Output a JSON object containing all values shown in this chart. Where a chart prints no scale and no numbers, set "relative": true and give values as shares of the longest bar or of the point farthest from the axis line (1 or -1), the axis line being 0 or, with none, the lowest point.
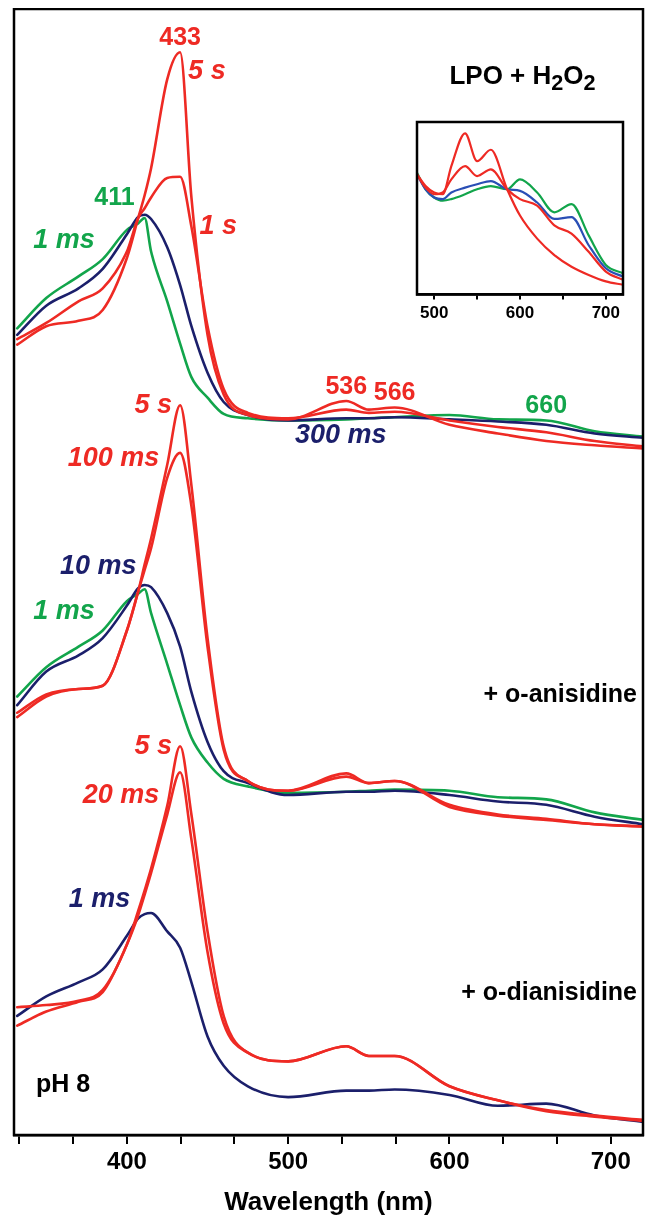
{
  "chart_data": [
    {
      "type": "line",
      "xlabel": "Wavelength (nm)",
      "relative": true,
      "legend": false,
      "grid": false,
      "marker": "none",
      "line_style": "solid",
      "x": [
        332,
        350,
        370,
        385,
        400,
        407,
        411,
        415,
        425,
        433,
        440,
        450,
        460,
        475,
        500,
        536,
        550,
        566,
        600,
        630,
        660,
        690,
        720
      ],
      "xlim": [
        330,
        720
      ],
      "xticks": [
        {
          "value": 333.3,
          "label": null
        },
        {
          "value": 366.7,
          "label": null
        },
        400,
        {
          "value": 433.3,
          "label": null
        },
        {
          "value": 466.7,
          "label": null
        },
        500,
        {
          "value": 533.3,
          "label": null
        },
        {
          "value": 566.7,
          "label": null
        },
        600,
        {
          "value": 633.3,
          "label": null
        },
        {
          "value": 666.7,
          "label": null
        },
        700
      ],
      "series": [
        {
          "name": "5 s",
          "color": "#ee2a24",
          "values": [
            0.73,
            0.747,
            0.752,
            0.762,
            0.81,
            0.847,
            0.868,
            0.893,
            0.975,
            1.0,
            0.866,
            0.739,
            0.684,
            0.665,
            0.661,
            0.678,
            0.67,
            0.672,
            0.656,
            0.648,
            0.641,
            0.637,
            0.634
          ]
        },
        {
          "name": "1 s",
          "color": "#ee2a24",
          "values": [
            0.735,
            0.75,
            0.77,
            0.782,
            0.816,
            0.847,
            0.856,
            0.866,
            0.884,
            0.885,
            0.839,
            0.747,
            0.689,
            0.667,
            0.662,
            0.67,
            0.667,
            0.668,
            0.66,
            0.654,
            0.649,
            0.641,
            0.636
          ]
        },
        {
          "name": "300 ms",
          "color": "#1b1f6b",
          "values": [
            0.739,
            0.766,
            0.782,
            0.8,
            0.832,
            0.848,
            0.85,
            0.846,
            0.82,
            0.785,
            0.747,
            0.704,
            0.677,
            0.665,
            0.66,
            0.662,
            0.662,
            0.663,
            0.661,
            0.659,
            0.656,
            0.648,
            0.644
          ]
        },
        {
          "name": "1 ms",
          "color": "#12a54b",
          "values": [
            0.745,
            0.773,
            0.793,
            0.809,
            0.836,
            0.842,
            0.847,
            0.816,
            0.77,
            0.731,
            0.7,
            0.681,
            0.666,
            0.662,
            0.66,
            0.661,
            0.662,
            0.663,
            0.665,
            0.661,
            0.66,
            0.65,
            0.645
          ]
        },
        {
          "name": "5 s",
          "color": "#ee2a24",
          "values": [
            0.39,
            0.407,
            0.412,
            0.415,
            0.466,
            0.502,
            0.527,
            0.551,
            0.619,
            0.674,
            0.6,
            0.459,
            0.359,
            0.327,
            0.318,
            0.334,
            0.325,
            0.327,
            0.305,
            0.296,
            0.292,
            0.287,
            0.285
          ]
        },
        {
          "name": "100 ms",
          "color": "#ee2a24",
          "values": [
            0.386,
            0.405,
            0.412,
            0.415,
            0.466,
            0.502,
            0.522,
            0.542,
            0.607,
            0.63,
            0.581,
            0.451,
            0.356,
            0.327,
            0.318,
            0.331,
            0.325,
            0.327,
            0.303,
            0.295,
            0.291,
            0.287,
            0.285
          ]
        },
        {
          "name": "10 ms",
          "color": "#1b1f6b",
          "values": [
            0.397,
            0.428,
            0.443,
            0.459,
            0.489,
            0.505,
            0.508,
            0.506,
            0.482,
            0.451,
            0.409,
            0.363,
            0.336,
            0.325,
            0.314,
            0.317,
            0.317,
            0.318,
            0.314,
            0.308,
            0.305,
            0.294,
            0.287
          ]
        },
        {
          "name": "1 ms",
          "color": "#12a54b",
          "values": [
            0.405,
            0.432,
            0.451,
            0.466,
            0.493,
            0.5,
            0.504,
            0.482,
            0.435,
            0.397,
            0.367,
            0.344,
            0.329,
            0.322,
            0.316,
            0.317,
            0.318,
            0.319,
            0.318,
            0.312,
            0.31,
            0.298,
            0.291
          ]
        },
        {
          "name": "5 s",
          "color": "#ee2a24",
          "values": [
            0.118,
            0.12,
            0.124,
            0.134,
            0.176,
            0.207,
            0.226,
            0.246,
            0.304,
            0.359,
            0.296,
            0.188,
            0.11,
            0.076,
            0.068,
            0.082,
            0.073,
            0.073,
            0.045,
            0.032,
            0.023,
            0.018,
            0.014
          ]
        },
        {
          "name": "20 ms",
          "color": "#ee2a24",
          "values": [
            0.101,
            0.114,
            0.123,
            0.132,
            0.176,
            0.203,
            0.222,
            0.242,
            0.296,
            0.335,
            0.273,
            0.169,
            0.103,
            0.076,
            0.068,
            0.082,
            0.073,
            0.073,
            0.045,
            0.032,
            0.022,
            0.017,
            0.013
          ]
        },
        {
          "name": "1 ms",
          "color": "#1b1f6b",
          "values": [
            0.11,
            0.128,
            0.141,
            0.153,
            0.184,
            0.2,
            0.204,
            0.205,
            0.188,
            0.173,
            0.141,
            0.091,
            0.064,
            0.045,
            0.035,
            0.041,
            0.041,
            0.042,
            0.037,
            0.027,
            0.029,
            0.018,
            0.012
          ]
        }
      ],
      "annotations": [
        "+ o-anisidine",
        "+ o-dianisidine",
        "pH 8",
        {
          "text": "433",
          "x": 433,
          "y": 1.0
        },
        {
          "text": "411",
          "x": 411,
          "y": 0.847
        },
        {
          "text": "536",
          "x": 536,
          "y": 0.678
        },
        {
          "text": "566",
          "x": 566,
          "y": 0.672
        },
        {
          "text": "660",
          "x": 660,
          "y": 0.66
        }
      ]
    },
    {
      "type": "line",
      "title": "LPO + H$_{2}$O$_{2}$",
      "relative": true,
      "legend": false,
      "grid": false,
      "marker": "none",
      "line_style": "solid",
      "x": [
        480,
        490,
        500,
        510,
        520,
        536,
        550,
        566,
        585,
        600,
        620,
        640,
        660,
        680,
        700,
        720
      ],
      "xlim": [
        480,
        720
      ],
      "xticks": [
        500,
        {
          "value": 550,
          "label": null
        },
        600,
        {
          "value": 650,
          "label": null
        },
        700
      ],
      "series": [
        {
          "color": "#ee2a24",
          "values": [
            0.745,
            0.673,
            0.633,
            0.622,
            0.796,
            1.0,
            0.827,
            0.898,
            0.653,
            0.49,
            0.347,
            0.245,
            0.173,
            0.122,
            0.082,
            0.061
          ]
        },
        {
          "color": "#ee2a24",
          "values": [
            0.745,
            0.663,
            0.622,
            0.633,
            0.714,
            0.796,
            0.735,
            0.776,
            0.653,
            0.592,
            0.551,
            0.429,
            0.378,
            0.265,
            0.143,
            0.092
          ]
        },
        {
          "color": "#2a4fb5",
          "values": [
            0.745,
            0.653,
            0.602,
            0.592,
            0.633,
            0.663,
            0.684,
            0.704,
            0.653,
            0.643,
            0.571,
            0.469,
            0.48,
            0.306,
            0.163,
            0.112
          ]
        },
        {
          "color": "#12a54b",
          "values": [
            0.755,
            0.653,
            0.602,
            0.582,
            0.592,
            0.622,
            0.653,
            0.673,
            0.653,
            0.714,
            0.633,
            0.51,
            0.561,
            0.367,
            0.184,
            0.133
          ]
        }
      ]
    }
  ]
}
